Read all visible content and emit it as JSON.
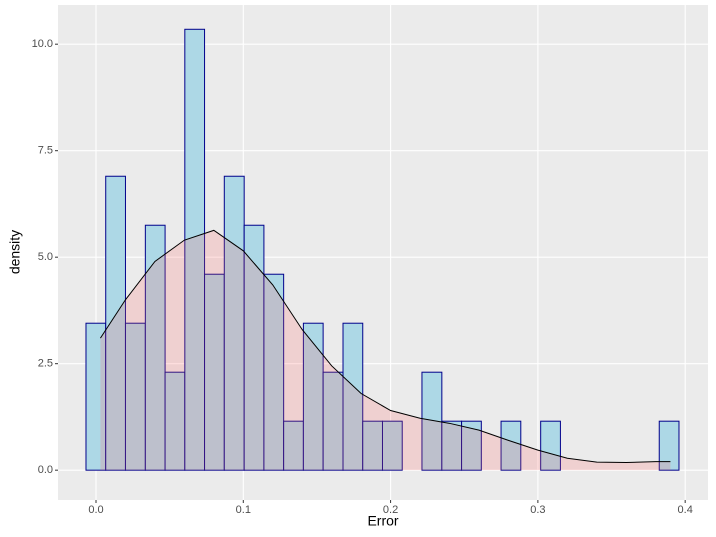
{
  "chart_data": {
    "type": "histogram",
    "xlabel": "Error",
    "ylabel": "density",
    "bins": [
      -0.0068,
      0.0066,
      0.02,
      0.0335,
      0.0469,
      0.0603,
      0.0737,
      0.0871,
      0.1006,
      0.114,
      0.1274,
      0.1408,
      0.1542,
      0.1677,
      0.1811,
      0.1945,
      0.2079,
      0.2213,
      0.2348,
      0.2482,
      0.2616,
      0.275,
      0.2884,
      0.3019,
      0.3153,
      0.3287,
      0.3421,
      0.3555,
      0.369,
      0.3824,
      0.3958
    ],
    "values": [
      3.45,
      6.9,
      3.45,
      5.75,
      2.3,
      10.35,
      4.6,
      6.9,
      5.75,
      4.6,
      1.15,
      3.45,
      2.3,
      3.45,
      1.15,
      1.15,
      0,
      2.3,
      1.15,
      1.15,
      0,
      1.15,
      0,
      1.15,
      0,
      0,
      0,
      0,
      0,
      1.15
    ],
    "color": "#ADD8E6",
    "edgecolor": "#00008B",
    "overlay": {
      "type": "area",
      "color": "#FF6666",
      "linecolor": "#000000",
      "x": [
        0.003,
        0.02,
        0.04,
        0.06,
        0.08,
        0.1,
        0.12,
        0.14,
        0.16,
        0.18,
        0.2,
        0.22,
        0.24,
        0.26,
        0.28,
        0.3,
        0.32,
        0.34,
        0.36,
        0.38,
        0.39
      ],
      "values": [
        3.1,
        4.0,
        4.9,
        5.4,
        5.63,
        5.15,
        4.35,
        3.3,
        2.45,
        1.8,
        1.4,
        1.22,
        1.1,
        0.94,
        0.7,
        0.47,
        0.28,
        0.19,
        0.18,
        0.2,
        0.2
      ]
    },
    "xlim": [
      -0.0258,
      0.4155
    ],
    "xticks": [
      {
        "value": 0,
        "label": "0.0"
      },
      0.1,
      0.2,
      0.3,
      0.4
    ],
    "ylim": [
      -0.7,
      10.92
    ],
    "yticks": [
      {
        "value": 0,
        "label": "0.0"
      },
      2.5,
      {
        "value": 5,
        "label": "5.0"
      },
      7.5,
      {
        "value": 10,
        "label": "10.0"
      }
    ],
    "grid": true
  }
}
